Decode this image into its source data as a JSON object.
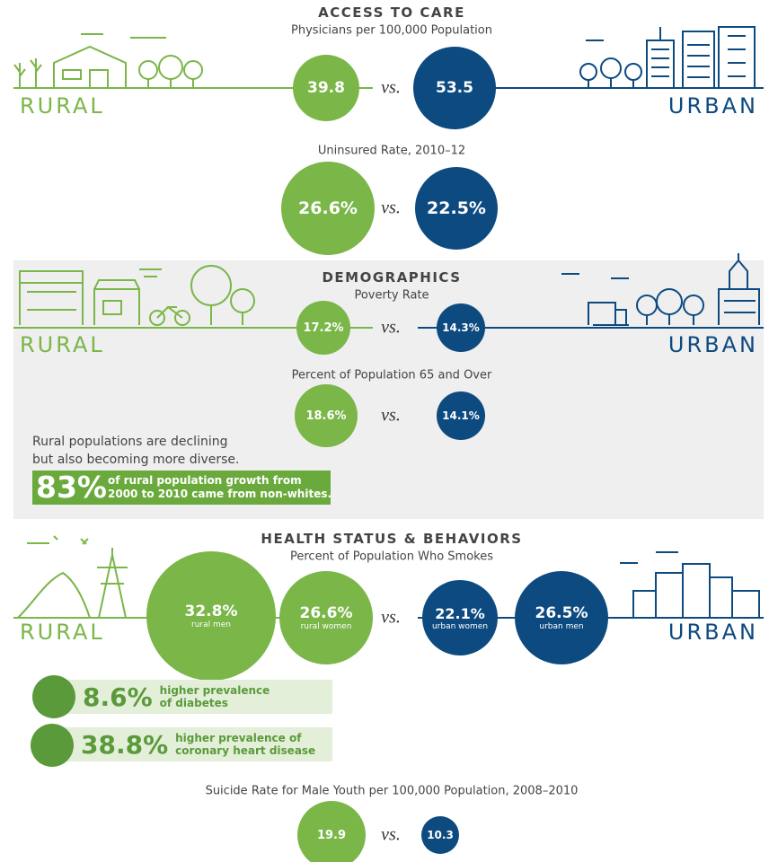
{
  "vs": "vs.",
  "access_to_care": {
    "title": "ACCESS TO CARE",
    "rural_label": "RURAL",
    "urban_label": "URBAN",
    "physicians": {
      "label": "Physicians per 100,000 Population",
      "rural": "39.8",
      "urban": "53.5"
    },
    "uninsured": {
      "label": "Uninsured Rate, 2010–12",
      "rural": "26.6%",
      "urban": "22.5%"
    }
  },
  "demographics": {
    "title": "DEMOGRAPHICS",
    "rural_label": "RURAL",
    "urban_label": "URBAN",
    "poverty": {
      "label": "Poverty Rate",
      "rural": "17.2%",
      "urban": "14.3%"
    },
    "age_65": {
      "label": "Percent of Population 65 and Over",
      "rural": "18.6%",
      "urban": "14.1%"
    },
    "note": [
      "Rural populations are declining",
      "but also becoming more diverse."
    ],
    "callout": {
      "value": "83%",
      "text": [
        "of rural population growth from",
        "2000 to 2010 came from non-whites."
      ]
    }
  },
  "health": {
    "title": "HEALTH STATUS & BEHAVIORS",
    "rural_label": "RURAL",
    "urban_label": "URBAN",
    "smokes": {
      "label": "Percent of Population Who Smokes",
      "groups": [
        {
          "value": "32.8%",
          "name": "rural men"
        },
        {
          "value": "26.6%",
          "name": "rural women"
        },
        {
          "value": "22.1%",
          "name": "urban women"
        },
        {
          "value": "26.5%",
          "name": "urban men"
        }
      ]
    },
    "stats": [
      {
        "value": "8.6%",
        "text": [
          "higher prevalence",
          "of diabetes"
        ]
      },
      {
        "value": "38.8%",
        "text": [
          "higher prevalence of",
          "coronary heart disease"
        ]
      }
    ],
    "suicide": {
      "label": "Suicide Rate for Male Youth per 100,000 Population, 2008–2010",
      "rural": "19.9",
      "urban": "10.3"
    }
  }
}
